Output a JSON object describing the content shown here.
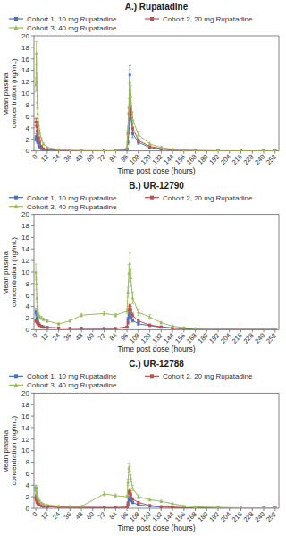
{
  "chart_data": [
    {
      "type": "line",
      "title": "A.) Rupatadine",
      "x_label": "Time post dose (hours)",
      "y_label": "Mean plasma concentration (ng/mL)",
      "x": [
        0,
        0.5,
        1,
        1.5,
        2,
        3,
        4,
        6,
        8,
        12,
        24,
        36,
        48,
        72,
        84,
        96,
        97,
        98,
        99,
        100,
        102,
        108,
        120,
        132,
        144,
        156,
        168,
        192,
        216,
        240,
        252
      ],
      "series": [
        {
          "name": "Cohort 1, 10 mg Rupatadine",
          "color": "#4472C4",
          "marker": "square",
          "values": [
            2.0,
            2.5,
            2.2,
            1.8,
            1.5,
            1.0,
            0.7,
            0.4,
            0.2,
            0.15,
            0.05,
            0.02,
            0.02,
            0.02,
            0.02,
            0.2,
            1.5,
            4.0,
            13.2,
            6.5,
            3.0,
            1.5,
            0.6,
            0.3,
            0.2,
            0.1,
            0.05,
            0.02,
            0.02,
            0.02,
            0.02
          ],
          "errors": [
            0.3,
            0.5,
            0.4,
            0.3,
            0.25,
            0.2,
            0.15,
            0.1,
            0.08,
            0.06,
            0.03,
            0.01,
            0.01,
            0.01,
            0.01,
            0.08,
            0.4,
            0.9,
            1.6,
            1.2,
            0.7,
            0.35,
            0.15,
            0.1,
            0.07,
            0.04,
            0.03,
            0.01,
            0.01,
            0.01,
            0.01
          ]
        },
        {
          "name": "Cohort 2, 20 mg Rupatadine",
          "color": "#C0504D",
          "marker": "square",
          "values": [
            5.0,
            5.0,
            4.2,
            3.5,
            3.0,
            2.2,
            1.5,
            0.8,
            0.4,
            0.25,
            0.1,
            0.05,
            0.03,
            0.03,
            0.03,
            0.4,
            3.0,
            6.5,
            9.2,
            6.8,
            4.0,
            1.8,
            0.8,
            0.4,
            0.15,
            0.08,
            0.05,
            0.03,
            0.02,
            0.02,
            0.02
          ],
          "errors": [
            0.6,
            0.7,
            0.6,
            0.5,
            0.4,
            0.3,
            0.22,
            0.12,
            0.08,
            0.06,
            0.04,
            0.02,
            0.02,
            0.02,
            0.02,
            0.12,
            0.6,
            1.1,
            1.3,
            1.0,
            0.75,
            0.35,
            0.18,
            0.1,
            0.06,
            0.04,
            0.03,
            0.02,
            0.01,
            0.01,
            0.01
          ]
        },
        {
          "name": "Cohort 3, 40 mg Rupatadine",
          "color": "#9BBB59",
          "marker": "triangle",
          "values": [
            11.5,
            17.0,
            12.0,
            8.5,
            6.5,
            4.5,
            3.2,
            2.0,
            1.2,
            0.6,
            0.25,
            0.12,
            0.08,
            0.05,
            0.05,
            0.4,
            3.5,
            7.5,
            12.0,
            9.5,
            5.5,
            2.8,
            1.2,
            0.6,
            0.3,
            0.12,
            0.08,
            0.05,
            0.03,
            0.03,
            0.03
          ],
          "errors": [
            1.2,
            2.0,
            1.5,
            1.1,
            0.9,
            0.6,
            0.45,
            0.3,
            0.18,
            0.1,
            0.07,
            0.04,
            0.03,
            0.02,
            0.02,
            0.12,
            0.8,
            1.6,
            2.2,
            1.9,
            1.3,
            0.65,
            0.28,
            0.18,
            0.1,
            0.06,
            0.04,
            0.02,
            0.02,
            0.02,
            0.02
          ]
        }
      ],
      "xlim": [
        -2,
        256
      ],
      "xticks": [
        0,
        12,
        24,
        36,
        48,
        60,
        72,
        84,
        96,
        108,
        120,
        132,
        144,
        156,
        168,
        180,
        192,
        204,
        216,
        228,
        240,
        252
      ],
      "ylim": [
        0,
        20
      ],
      "yticks": [
        0,
        2,
        4,
        6,
        8,
        10,
        12,
        14,
        16,
        18,
        20
      ],
      "grid": false,
      "legend": "top"
    },
    {
      "type": "line",
      "title": "B.) UR-12790",
      "x_label": "Time post dose (hours)",
      "y_label": "Mean plasma concentration (ng/mL)",
      "x": [
        0,
        0.5,
        1,
        1.5,
        2,
        3,
        4,
        6,
        8,
        12,
        24,
        36,
        48,
        72,
        84,
        96,
        97,
        98,
        99,
        100,
        102,
        108,
        120,
        132,
        144,
        156,
        168,
        192,
        216,
        240,
        252
      ],
      "series": [
        {
          "name": "Cohort 1, 10 mg Rupatadine",
          "color": "#4472C4",
          "marker": "square",
          "values": [
            3.2,
            2.8,
            2.0,
            1.7,
            1.4,
            1.0,
            0.8,
            0.6,
            0.5,
            0.4,
            0.3,
            0.25,
            0.25,
            0.2,
            0.2,
            0.5,
            1.8,
            2.5,
            2.8,
            2.2,
            1.6,
            1.0,
            0.7,
            0.4,
            0.25,
            0.15,
            0.1,
            0.05,
            0.05,
            0.03,
            0.03
          ],
          "errors": [
            0.45,
            0.35,
            0.3,
            0.25,
            0.2,
            0.15,
            0.12,
            0.1,
            0.08,
            0.06,
            0.05,
            0.04,
            0.04,
            0.03,
            0.03,
            0.1,
            0.35,
            0.5,
            0.55,
            0.45,
            0.3,
            0.2,
            0.12,
            0.08,
            0.06,
            0.04,
            0.03,
            0.02,
            0.02,
            0.02,
            0.02
          ]
        },
        {
          "name": "Cohort 2, 20 mg Rupatadine",
          "color": "#C0504D",
          "marker": "square",
          "values": [
            1.5,
            1.5,
            1.5,
            1.2,
            1.0,
            0.8,
            0.7,
            0.5,
            0.4,
            0.35,
            0.3,
            0.25,
            0.2,
            0.2,
            0.2,
            0.4,
            1.2,
            3.5,
            4.2,
            3.5,
            2.5,
            1.5,
            0.8,
            0.5,
            0.3,
            0.15,
            0.1,
            0.05,
            0.03,
            0.03,
            0.03
          ],
          "errors": [
            0.22,
            0.2,
            0.2,
            0.16,
            0.14,
            0.1,
            0.1,
            0.08,
            0.06,
            0.05,
            0.04,
            0.04,
            0.03,
            0.03,
            0.03,
            0.08,
            0.25,
            0.5,
            0.6,
            0.5,
            0.38,
            0.22,
            0.14,
            0.08,
            0.06,
            0.04,
            0.03,
            0.02,
            0.02,
            0.02,
            0.02
          ]
        },
        {
          "name": "Cohort 3, 40 mg Rupatadine",
          "color": "#9BBB59",
          "marker": "triangle",
          "values": [
            10.0,
            8.0,
            5.5,
            3.5,
            2.8,
            2.5,
            2.2,
            2.0,
            1.8,
            1.5,
            1.0,
            1.5,
            2.5,
            2.8,
            2.5,
            3.2,
            6.5,
            9.8,
            11.5,
            9.0,
            5.5,
            3.0,
            2.2,
            1.2,
            0.6,
            0.35,
            0.2,
            0.1,
            0.05,
            0.05,
            0.05
          ],
          "errors": [
            1.4,
            1.1,
            0.8,
            0.55,
            0.45,
            0.38,
            0.32,
            0.28,
            0.24,
            0.2,
            0.16,
            0.18,
            0.28,
            0.32,
            0.28,
            0.42,
            0.85,
            1.5,
            1.8,
            1.5,
            1.0,
            0.58,
            0.38,
            0.22,
            0.14,
            0.1,
            0.07,
            0.04,
            0.03,
            0.03,
            0.02
          ]
        }
      ],
      "xlim": [
        -2,
        256
      ],
      "xticks": [
        0,
        12,
        24,
        36,
        48,
        60,
        72,
        84,
        96,
        108,
        120,
        132,
        144,
        156,
        168,
        180,
        192,
        204,
        216,
        228,
        240,
        252
      ],
      "ylim": [
        0,
        20
      ],
      "yticks": [
        0,
        2,
        4,
        6,
        8,
        10,
        12,
        14,
        16,
        18,
        20
      ],
      "grid": false,
      "legend": "top"
    },
    {
      "type": "line",
      "title": "C.) UR-12788",
      "x_label": "Time post dose (hours)",
      "y_label": "Mean plasma concentration (ng/mL)",
      "x": [
        0,
        0.5,
        1,
        1.5,
        2,
        3,
        4,
        6,
        8,
        12,
        24,
        36,
        48,
        72,
        84,
        96,
        97,
        98,
        99,
        100,
        102,
        108,
        120,
        132,
        144,
        156,
        168,
        192,
        216,
        240,
        252
      ],
      "series": [
        {
          "name": "Cohort 1, 10 mg Rupatadine",
          "color": "#4472C4",
          "marker": "square",
          "values": [
            3.5,
            2.2,
            1.5,
            1.2,
            1.0,
            0.7,
            0.55,
            0.4,
            0.3,
            0.25,
            0.15,
            0.1,
            0.1,
            0.08,
            0.08,
            0.15,
            0.5,
            1.5,
            1.8,
            1.4,
            1.0,
            0.6,
            0.35,
            0.2,
            0.12,
            0.08,
            0.05,
            0.02,
            0.02,
            0.02,
            0.02
          ],
          "errors": [
            0.45,
            0.3,
            0.22,
            0.16,
            0.14,
            0.1,
            0.08,
            0.06,
            0.05,
            0.04,
            0.03,
            0.02,
            0.02,
            0.02,
            0.02,
            0.04,
            0.12,
            0.3,
            0.35,
            0.28,
            0.2,
            0.12,
            0.08,
            0.05,
            0.04,
            0.03,
            0.02,
            0.01,
            0.01,
            0.01,
            0.01
          ]
        },
        {
          "name": "Cohort 2, 20 mg Rupatadine",
          "color": "#C0504D",
          "marker": "square",
          "values": [
            1.8,
            1.5,
            1.2,
            1.0,
            0.8,
            0.65,
            0.55,
            0.45,
            0.38,
            0.3,
            0.22,
            0.18,
            0.18,
            0.15,
            0.12,
            0.2,
            0.9,
            2.8,
            3.0,
            2.4,
            1.6,
            1.0,
            0.5,
            0.3,
            0.2,
            0.12,
            0.08,
            0.04,
            0.02,
            0.02,
            0.02
          ],
          "errors": [
            0.25,
            0.2,
            0.16,
            0.13,
            0.11,
            0.09,
            0.07,
            0.06,
            0.05,
            0.04,
            0.03,
            0.03,
            0.03,
            0.03,
            0.02,
            0.05,
            0.18,
            0.4,
            0.42,
            0.34,
            0.24,
            0.16,
            0.1,
            0.06,
            0.04,
            0.03,
            0.02,
            0.01,
            0.01,
            0.01,
            0.01
          ]
        },
        {
          "name": "Cohort 3, 40 mg Rupatadine",
          "color": "#9BBB59",
          "marker": "triangle",
          "values": [
            3.5,
            3.0,
            2.5,
            2.0,
            1.8,
            1.5,
            1.2,
            0.9,
            0.7,
            0.55,
            0.4,
            0.35,
            0.35,
            2.5,
            2.2,
            2.0,
            4.5,
            7.0,
            6.5,
            5.2,
            3.5,
            2.0,
            1.5,
            1.2,
            0.8,
            0.4,
            0.25,
            0.15,
            0.08,
            0.06,
            0.04
          ],
          "errors": [
            0.5,
            0.42,
            0.35,
            0.28,
            0.24,
            0.2,
            0.17,
            0.14,
            0.11,
            0.09,
            0.07,
            0.06,
            0.06,
            0.32,
            0.28,
            0.24,
            0.55,
            0.85,
            0.78,
            0.65,
            0.5,
            0.32,
            0.24,
            0.18,
            0.13,
            0.08,
            0.06,
            0.03,
            0.02,
            0.02,
            0.01
          ]
        }
      ],
      "xlim": [
        -2,
        256
      ],
      "xticks": [
        0,
        12,
        24,
        36,
        48,
        60,
        72,
        84,
        96,
        108,
        120,
        132,
        144,
        156,
        168,
        180,
        192,
        204,
        216,
        228,
        240,
        252
      ],
      "ylim": [
        0,
        20
      ],
      "yticks": [
        0,
        2,
        4,
        6,
        8,
        10,
        12,
        14,
        16,
        18,
        20
      ],
      "grid": false,
      "legend": "top"
    }
  ]
}
